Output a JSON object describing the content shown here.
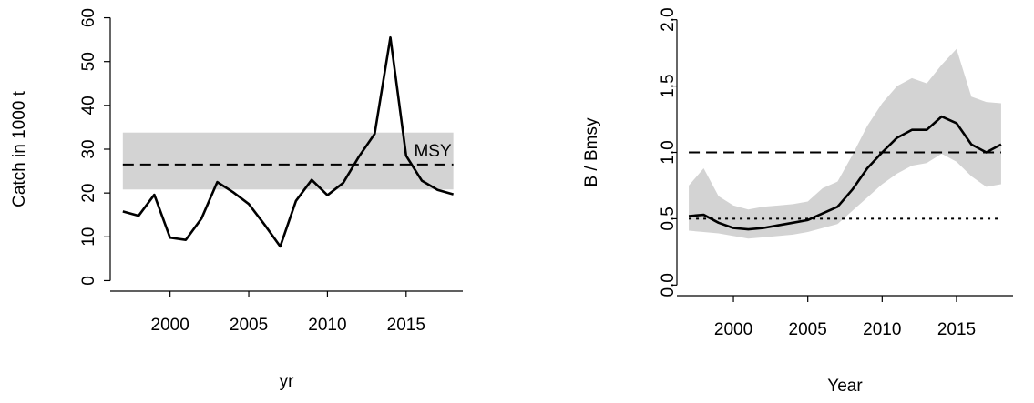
{
  "chart_data": [
    {
      "type": "line",
      "xlabel": "yr",
      "ylabel": "Catch in 1000 t",
      "x": [
        1997,
        1998,
        1999,
        2000,
        2001,
        2002,
        2003,
        2004,
        2005,
        2006,
        2007,
        2008,
        2009,
        2010,
        2011,
        2012,
        2013,
        2014,
        2015,
        2016,
        2017,
        2018
      ],
      "values": [
        15.8,
        14.8,
        19.6,
        9.8,
        9.3,
        14.2,
        22.5,
        20.2,
        17.5,
        12.8,
        7.8,
        18.2,
        23.0,
        19.5,
        22.3,
        28.3,
        33.5,
        55.5,
        28.5,
        22.8,
        20.7,
        19.7
      ],
      "color": "#000000",
      "band": {
        "lower": 20.8,
        "upper": 33.8,
        "color": "#d3d3d3"
      },
      "hlines": [
        {
          "y": 26.5,
          "style": "dashed"
        }
      ],
      "annotation": "MSY",
      "xlim": [
        1996.2,
        2018.6
      ],
      "ylim": [
        -2.4,
        62.4
      ],
      "xticks": [
        2000,
        2005,
        2010,
        2015
      ],
      "yticks": [
        0,
        10,
        20,
        30,
        40,
        50,
        60
      ]
    },
    {
      "type": "line",
      "xlabel": "Year",
      "ylabel": "B / Bmsy",
      "x": [
        1997,
        1998,
        1999,
        2000,
        2001,
        2002,
        2003,
        2004,
        2005,
        2006,
        2007,
        2008,
        2009,
        2010,
        2011,
        2012,
        2013,
        2014,
        2015,
        2016,
        2017,
        2018
      ],
      "values": [
        0.52,
        0.53,
        0.47,
        0.43,
        0.42,
        0.43,
        0.45,
        0.47,
        0.49,
        0.54,
        0.59,
        0.72,
        0.88,
        1.0,
        1.11,
        1.17,
        1.17,
        1.27,
        1.22,
        1.06,
        1.0,
        1.06
      ],
      "color": "#000000",
      "band": {
        "lower": [
          0.41,
          0.4,
          0.39,
          0.37,
          0.35,
          0.36,
          0.37,
          0.38,
          0.4,
          0.43,
          0.46,
          0.56,
          0.66,
          0.76,
          0.84,
          0.9,
          0.92,
          0.99,
          0.93,
          0.82,
          0.74,
          0.76
        ],
        "upper": [
          0.75,
          0.88,
          0.67,
          0.6,
          0.57,
          0.59,
          0.6,
          0.61,
          0.63,
          0.73,
          0.78,
          0.98,
          1.2,
          1.37,
          1.5,
          1.56,
          1.52,
          1.66,
          1.78,
          1.42,
          1.38,
          1.37
        ],
        "color": "#d3d3d3"
      },
      "hlines": [
        {
          "y": 1,
          "style": "dashed"
        },
        {
          "y": 0.5,
          "style": "dotted"
        }
      ],
      "xlim": [
        1996.2,
        2018.8
      ],
      "ylim": [
        -0.08,
        2.08
      ],
      "xticks": [
        2000,
        2005,
        2010,
        2015
      ],
      "yticks": [
        {
          "value": 0,
          "label": "0.0"
        },
        0.5,
        {
          "value": 1,
          "label": "1.0"
        },
        1.5,
        {
          "value": 2,
          "label": "2.0"
        }
      ]
    }
  ]
}
